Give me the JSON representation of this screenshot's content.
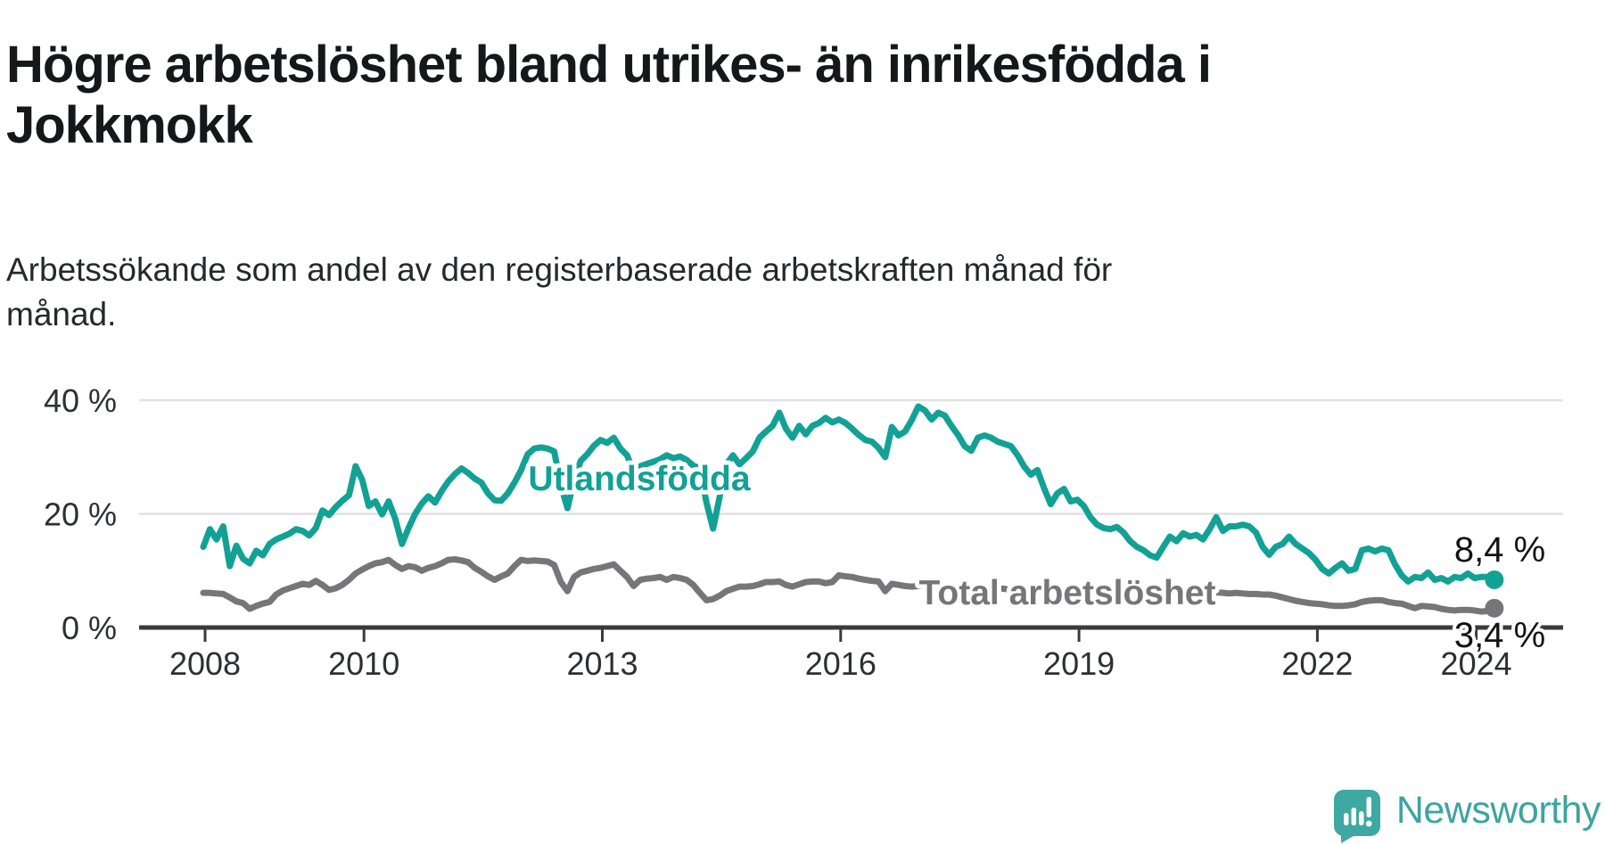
{
  "header": {
    "title_lines": [
      "Högre arbetslöshet bland utrikes- än inrikesfödda i",
      "Jokkmokk"
    ],
    "subtitle_lines": [
      "Arbetssökande som andel av den registerbaserade arbetskraften månad för",
      "månad."
    ]
  },
  "branding": {
    "name": "Newsworthy",
    "badge_color": "#3ea8a2",
    "text_color": "#3da49e"
  },
  "chart_data": {
    "type": "line",
    "title": "Högre arbetslöshet bland utrikes- än inrikesfödda i Jokkmokk",
    "subtitle": "Arbetssökande som andel av den registerbaserade arbetskraften månad för månad.",
    "x_unit": "month",
    "x_start": "2008-01",
    "x_end": "2024-04",
    "x_ticks": [
      2008,
      2010,
      2013,
      2016,
      2019,
      2022,
      2024
    ],
    "y_ticks": [
      {
        "value": 0,
        "label": "0 %"
      },
      {
        "value": 20,
        "label": "20 %"
      },
      {
        "value": 40,
        "label": "40 %"
      }
    ],
    "ylim": [
      0,
      42
    ],
    "grid": "horizontal-only",
    "series": [
      {
        "name": "Utlandsfödda",
        "color": "#12a195",
        "end_label": "8,4 %",
        "end_value": 8.4,
        "values": [
          14.2,
          17.3,
          15.5,
          17.8,
          10.8,
          14.4,
          12.1,
          11.3,
          13.5,
          12.7,
          14.7,
          15.5,
          16.0,
          16.5,
          17.3,
          17.0,
          16.2,
          17.5,
          20.6,
          19.8,
          21.2,
          22.3,
          23.3,
          28.4,
          26.0,
          21.4,
          22.2,
          19.9,
          22.2,
          19.1,
          14.7,
          17.5,
          20.0,
          21.8,
          23.1,
          22.0,
          24.0,
          25.7,
          27.0,
          28.0,
          27.2,
          26.2,
          25.5,
          23.6,
          22.4,
          22.3,
          23.6,
          25.5,
          27.7,
          30.5,
          31.5,
          31.7,
          31.5,
          31.0,
          25.0,
          21.0,
          26.0,
          29.3,
          30.5,
          32.0,
          33.0,
          32.5,
          33.4,
          31.5,
          30.3,
          27.5,
          28.4,
          28.8,
          29.2,
          29.6,
          30.3,
          29.8,
          30.1,
          29.5,
          28.5,
          28.0,
          22.0,
          17.4,
          23.0,
          28.7,
          30.3,
          28.7,
          29.8,
          31.0,
          33.4,
          34.5,
          35.5,
          37.8,
          35.0,
          33.4,
          35.5,
          34.0,
          35.5,
          36.0,
          36.9,
          36.1,
          36.6,
          36.0,
          35.0,
          33.9,
          33.0,
          32.7,
          31.6,
          30.0,
          35.3,
          33.8,
          34.5,
          36.5,
          38.9,
          38.2,
          36.6,
          37.8,
          37.3,
          35.5,
          33.9,
          31.9,
          31.1,
          33.4,
          33.8,
          33.4,
          32.7,
          32.3,
          31.9,
          30.3,
          28.3,
          26.9,
          27.7,
          24.5,
          21.7,
          23.6,
          24.4,
          22.2,
          22.5,
          21.4,
          19.4,
          18.1,
          17.5,
          17.3,
          17.7,
          16.7,
          15.2,
          14.2,
          13.6,
          12.7,
          12.3,
          14.2,
          16.0,
          15.2,
          16.6,
          16.0,
          16.3,
          15.5,
          17.3,
          19.4,
          17.0,
          17.8,
          17.8,
          18.1,
          17.8,
          16.7,
          14.2,
          12.8,
          14.2,
          14.7,
          16.0,
          14.7,
          13.9,
          13.1,
          11.9,
          10.3,
          9.5,
          10.5,
          11.3,
          10.0,
          10.3,
          13.6,
          13.9,
          13.4,
          13.9,
          13.6,
          11.1,
          9.2,
          8.1,
          8.9,
          8.7,
          9.7,
          8.4,
          8.7,
          8.1,
          8.9,
          8.7,
          9.5,
          8.7,
          8.9,
          8.9,
          8.4
        ]
      },
      {
        "name": "Total arbetslöshet",
        "color": "#76757a",
        "end_label": "3,4 %",
        "end_value": 3.4,
        "values": [
          6.1,
          6.1,
          6.0,
          5.9,
          5.3,
          4.6,
          4.3,
          3.3,
          3.8,
          4.2,
          4.5,
          5.8,
          6.5,
          6.9,
          7.3,
          7.7,
          7.5,
          8.2,
          7.5,
          6.6,
          6.9,
          7.5,
          8.4,
          9.5,
          10.2,
          10.8,
          11.3,
          11.5,
          11.9,
          11.0,
          10.3,
          10.8,
          10.6,
          10.0,
          10.5,
          10.8,
          11.3,
          11.9,
          12.0,
          11.8,
          11.5,
          10.5,
          9.8,
          9.0,
          8.4,
          9.0,
          9.5,
          10.8,
          11.9,
          11.7,
          11.8,
          11.7,
          11.6,
          11.0,
          8.0,
          6.4,
          8.9,
          9.7,
          10.0,
          10.3,
          10.5,
          10.8,
          11.1,
          10.0,
          8.9,
          7.3,
          8.4,
          8.6,
          8.7,
          8.9,
          8.4,
          8.9,
          8.7,
          8.4,
          7.5,
          6.1,
          4.8,
          5.0,
          5.6,
          6.4,
          6.8,
          7.2,
          7.2,
          7.3,
          7.6,
          8.0,
          8.0,
          8.1,
          7.5,
          7.2,
          7.6,
          8.0,
          8.1,
          8.1,
          7.8,
          8.0,
          9.2,
          9.0,
          8.9,
          8.6,
          8.4,
          8.2,
          8.1,
          6.4,
          7.7,
          7.5,
          7.3,
          7.2,
          7.3,
          7.4,
          7.2,
          7.0,
          6.8,
          6.6,
          6.5,
          6.6,
          6.8,
          7.0,
          7.1,
          7.0,
          6.9,
          6.8,
          6.6,
          6.4,
          6.2,
          6.0,
          6.1,
          5.9,
          5.7,
          5.8,
          5.9,
          5.7,
          5.8,
          5.6,
          5.4,
          5.2,
          5.1,
          5.0,
          5.2,
          5.0,
          4.9,
          4.8,
          4.7,
          4.6,
          4.7,
          4.9,
          5.5,
          5.8,
          6.0,
          6.2,
          6.3,
          6.1,
          6.0,
          6.2,
          6.1,
          6.0,
          6.1,
          6.0,
          5.9,
          5.9,
          5.8,
          5.8,
          5.6,
          5.3,
          5.0,
          4.7,
          4.5,
          4.3,
          4.2,
          4.1,
          3.9,
          3.8,
          3.8,
          3.9,
          4.1,
          4.5,
          4.7,
          4.8,
          4.8,
          4.5,
          4.3,
          4.2,
          3.8,
          3.4,
          3.8,
          3.7,
          3.6,
          3.3,
          3.1,
          3.0,
          3.1,
          3.1,
          3.0,
          2.8,
          2.9,
          3.4
        ]
      }
    ]
  }
}
